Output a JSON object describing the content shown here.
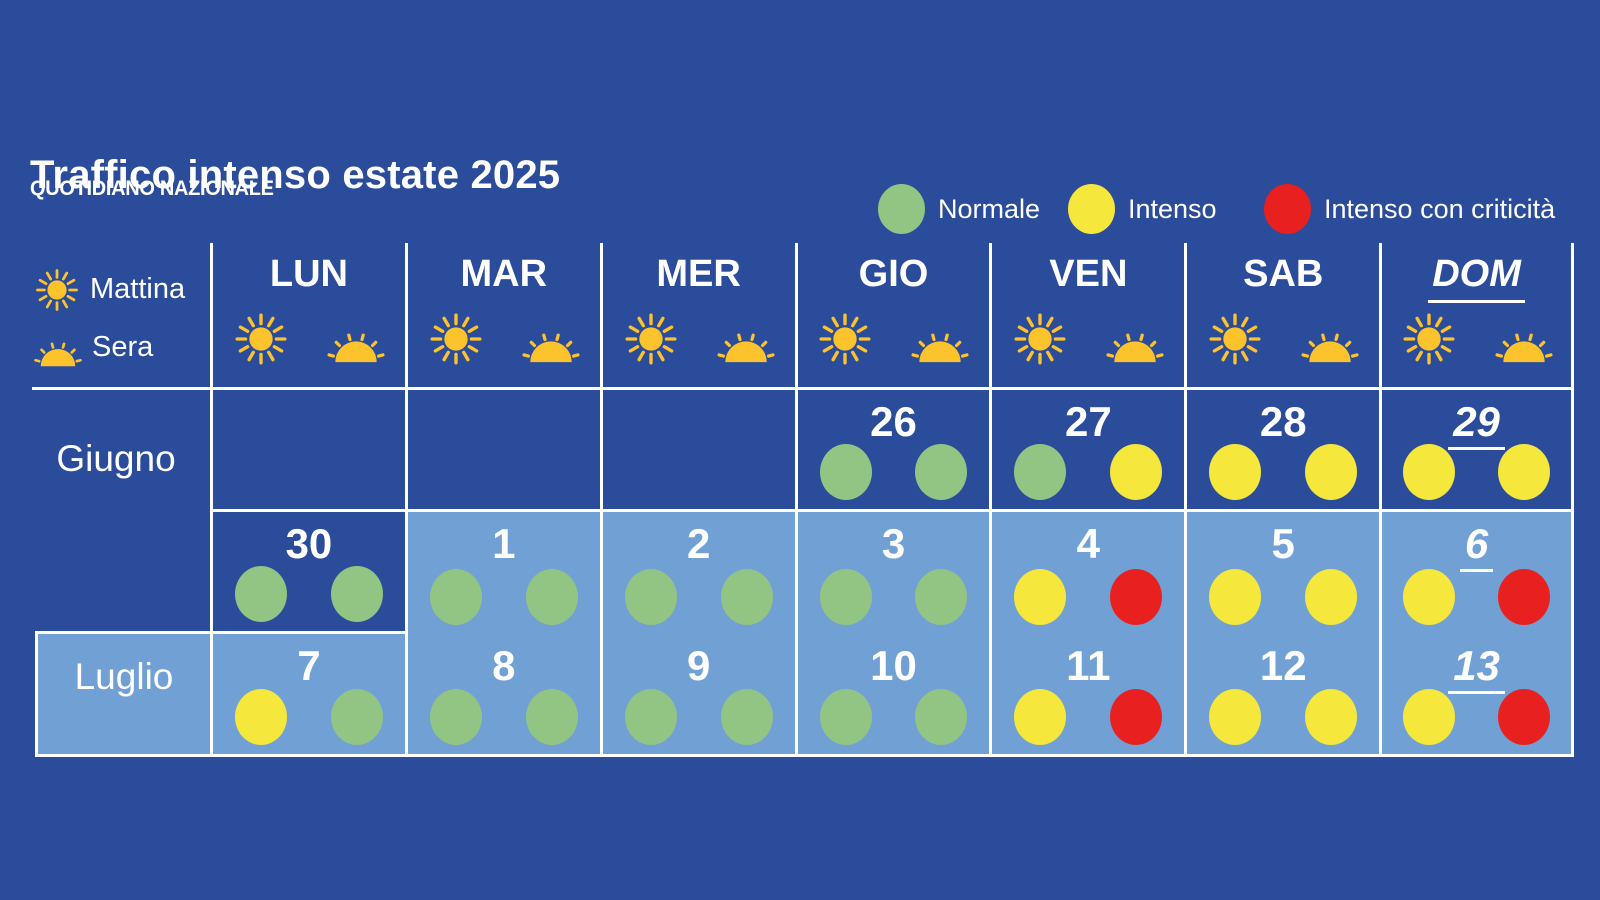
{
  "title": "Traffico intenso estate 2025",
  "source": "QUOTIDIANO NAZIONALE",
  "colors": {
    "background": "#2b4c9b",
    "july_cell": "#71a0d5",
    "grid_line": "#ffffff",
    "sun": "#fcc32d",
    "normale": "#92c583",
    "intenso": "#f6e73d",
    "critico": "#e8201f"
  },
  "legend": [
    {
      "key": "normale",
      "label": "Normale"
    },
    {
      "key": "intenso",
      "label": "Intenso"
    },
    {
      "key": "critico",
      "label": "Intenso con criticità"
    }
  ],
  "sidebar": {
    "morning_label": "Mattina",
    "evening_label": "Sera"
  },
  "chart_data": {
    "type": "table",
    "title": "Traffico intenso estate 2025",
    "columns": [
      "LUN",
      "MAR",
      "MER",
      "GIO",
      "VEN",
      "SAB",
      "DOM"
    ],
    "slots_per_day": [
      "Mattina",
      "Sera"
    ],
    "status_legend": {
      "normale": "Normale",
      "intenso": "Intenso",
      "critico": "Intenso con criticità"
    },
    "months": {
      "june": "Giugno",
      "july": "Luglio"
    },
    "weeks": [
      {
        "cells": [
          {
            "day": "",
            "month": "june"
          },
          {
            "day": "",
            "month": "june"
          },
          {
            "day": "",
            "month": "june"
          },
          {
            "day": "26",
            "month": "june",
            "morning": "normale",
            "evening": "normale"
          },
          {
            "day": "27",
            "month": "june",
            "morning": "normale",
            "evening": "intenso"
          },
          {
            "day": "28",
            "month": "june",
            "morning": "intenso",
            "evening": "intenso"
          },
          {
            "day": "29",
            "month": "june",
            "morning": "intenso",
            "evening": "intenso"
          }
        ]
      },
      {
        "cells": [
          {
            "day": "30",
            "month": "june",
            "morning": "normale",
            "evening": "normale"
          },
          {
            "day": "1",
            "month": "july",
            "morning": "normale",
            "evening": "normale"
          },
          {
            "day": "2",
            "month": "july",
            "morning": "normale",
            "evening": "normale"
          },
          {
            "day": "3",
            "month": "july",
            "morning": "normale",
            "evening": "normale"
          },
          {
            "day": "4",
            "month": "july",
            "morning": "intenso",
            "evening": "critico"
          },
          {
            "day": "5",
            "month": "july",
            "morning": "intenso",
            "evening": "intenso"
          },
          {
            "day": "6",
            "month": "july",
            "morning": "intenso",
            "evening": "critico"
          }
        ]
      },
      {
        "cells": [
          {
            "day": "7",
            "month": "july",
            "morning": "intenso",
            "evening": "normale"
          },
          {
            "day": "8",
            "month": "july",
            "morning": "normale",
            "evening": "normale"
          },
          {
            "day": "9",
            "month": "july",
            "morning": "normale",
            "evening": "normale"
          },
          {
            "day": "10",
            "month": "july",
            "morning": "normale",
            "evening": "normale"
          },
          {
            "day": "11",
            "month": "july",
            "morning": "intenso",
            "evening": "critico"
          },
          {
            "day": "12",
            "month": "july",
            "morning": "intenso",
            "evening": "intenso"
          },
          {
            "day": "13",
            "month": "july",
            "morning": "intenso",
            "evening": "critico"
          }
        ]
      }
    ]
  }
}
